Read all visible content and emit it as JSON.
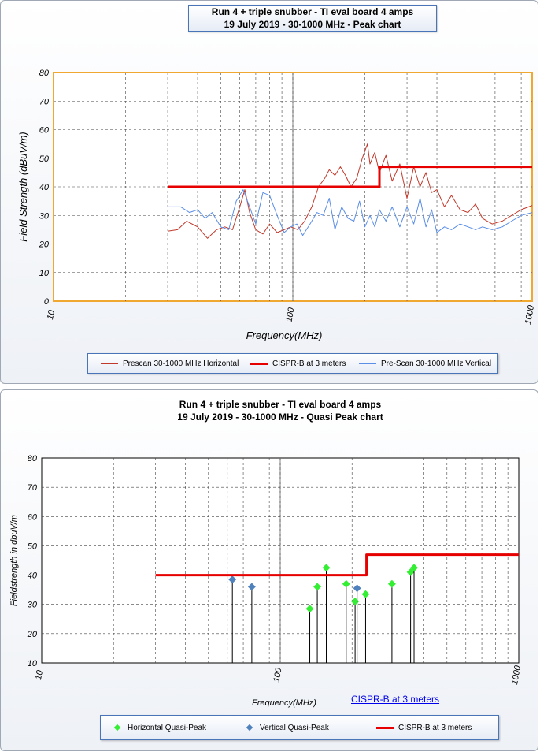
{
  "chart_data": [
    {
      "type": "line",
      "title": "Run 4 + triple snubber - TI eval board 4 amps",
      "subtitle": "19 July 2019 - 30-1000 MHz - Peak chart",
      "xlabel": "Frequency(MHz)",
      "ylabel": "Field Strength  (dBuV/m)",
      "xscale": "log",
      "xlim": [
        10,
        1000
      ],
      "ylim": [
        0,
        80
      ],
      "xticks": [
        "10",
        "100",
        "1000"
      ],
      "yticks": [
        "0",
        "10",
        "20",
        "30",
        "40",
        "50",
        "60",
        "70",
        "80"
      ],
      "grid": true,
      "legend_position": "bottom",
      "series": [
        {
          "name": "Prescan 30-1000 MHz Horizontal",
          "color": "#c0392b",
          "x": [
            30,
            33,
            36,
            40,
            44,
            48,
            52,
            56,
            60,
            63,
            66,
            70,
            75,
            80,
            86,
            92,
            98,
            105,
            112,
            120,
            128,
            136,
            142,
            150,
            158,
            166,
            175,
            185,
            195,
            205,
            210,
            220,
            230,
            245,
            260,
            280,
            300,
            320,
            340,
            360,
            380,
            400,
            430,
            460,
            500,
            540,
            580,
            620,
            680,
            750,
            820,
            900,
            1000
          ],
          "y": [
            24.5,
            25,
            28,
            26,
            22,
            25,
            26,
            25,
            33,
            39,
            31,
            25,
            23.5,
            27,
            24,
            25,
            26,
            25,
            28,
            33,
            40,
            43,
            46,
            44,
            47,
            44,
            40,
            43,
            50,
            55,
            48,
            52,
            45,
            51,
            42,
            48,
            36,
            47,
            40,
            45,
            38,
            39,
            33,
            37,
            32,
            31,
            34,
            29,
            27,
            28,
            30,
            32,
            33.5
          ]
        },
        {
          "name": "CISPR-B at  3 meters",
          "color": "#e60000",
          "x": [
            30,
            230,
            230,
            1000
          ],
          "y": [
            40,
            40,
            47,
            47
          ]
        },
        {
          "name": "Pre-Scan 30-1000 MHz Vertical",
          "color": "#5b8ee6",
          "x": [
            30,
            34,
            37,
            40,
            43,
            46,
            50,
            54,
            58,
            62,
            66,
            70,
            75,
            80,
            86,
            92,
            98,
            104,
            110,
            118,
            126,
            134,
            142,
            150,
            160,
            170,
            180,
            190,
            200,
            210,
            220,
            230,
            245,
            260,
            280,
            300,
            320,
            340,
            360,
            380,
            400,
            430,
            460,
            500,
            540,
            580,
            620,
            680,
            750,
            820,
            900,
            1000
          ],
          "y": [
            33,
            33,
            31,
            32,
            29,
            31,
            26,
            25,
            35,
            39,
            33,
            27,
            38,
            37,
            30,
            24,
            26,
            27,
            23,
            27,
            31,
            30,
            36,
            25,
            33,
            29,
            28,
            35,
            26,
            30,
            26,
            32,
            28,
            33,
            26,
            33,
            27,
            36,
            26,
            32,
            24,
            26,
            25,
            27,
            26,
            25,
            26,
            25,
            26,
            28,
            30,
            31
          ]
        }
      ]
    },
    {
      "type": "scatter",
      "title": "Run 4 + triple snubber - TI eval board 4 amps",
      "subtitle": "19 July 2019 - 30-1000 MHz - Quasi Peak chart",
      "xlabel": "Frequency(MHz)",
      "ylabel": "Fieldstrength in dbuV/m",
      "xscale": "log",
      "xlim": [
        10,
        1000
      ],
      "ylim": [
        10,
        80
      ],
      "xticks": [
        "10",
        "100",
        "1000"
      ],
      "yticks": [
        "10",
        "20",
        "30",
        "40",
        "50",
        "60",
        "70",
        "80"
      ],
      "grid": true,
      "legend_position": "bottom",
      "annotation": "CISPR-B at  3 meters",
      "series": [
        {
          "name": "Horizontal Quasi-Peak",
          "color": "#33ee33",
          "marker": "diamond",
          "x": [
            133,
            143,
            156,
            189,
            206,
            228,
            294,
            352,
            364
          ],
          "y": [
            28.5,
            36,
            42.5,
            37,
            31,
            33.5,
            37,
            41,
            42.5
          ]
        },
        {
          "name": "Vertical Quasi-Peak",
          "color": "#4f81bd",
          "marker": "diamond",
          "x": [
            63,
            76,
            210
          ],
          "y": [
            38.5,
            36,
            35.5
          ]
        },
        {
          "name": "CISPR-B at  3 meters",
          "color": "#e60000",
          "x": [
            30,
            230,
            230,
            1000
          ],
          "y": [
            40,
            40,
            47,
            47
          ]
        }
      ]
    }
  ]
}
